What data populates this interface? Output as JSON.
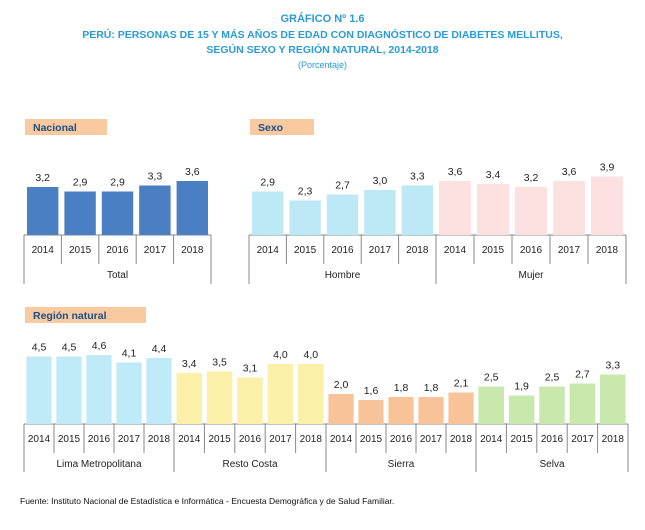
{
  "title": "GRÁFICO Nº 1.6",
  "subtitle1": "PERÚ: PERSONAS DE 15 Y MÁS AÑOS DE EDAD CON DIAGNÓSTICO DE DIABETES MELLITUS,",
  "subtitle2": "SEGÚN SEXO Y REGIÓN NATURAL, 2014-2018",
  "unit": "(Porcentaje)",
  "source": "Fuente: Instituto Nacional de Estadística e Informática - Encuesta Demográfica y de Salud Familiar.",
  "colors": {
    "label_bg": "#f9c9a0",
    "axis": "#888888",
    "total": "#4a7fc4",
    "hombre": "#bde8f5",
    "mujer": "#fde0e0",
    "lima": "#bfeaf8",
    "resto": "#fbf0a8",
    "sierra": "#f9c39a",
    "selva": "#c9e8ac"
  },
  "chart_data": [
    {
      "type": "bar",
      "section": "Nacional",
      "categories": [
        "2014",
        "2015",
        "2016",
        "2017",
        "2018"
      ],
      "ylim": [
        0,
        5
      ],
      "groups": [
        {
          "name": "Total",
          "color": "#4a7fc4",
          "values": [
            3.2,
            2.9,
            2.9,
            3.3,
            3.6
          ],
          "labels": [
            "3,2",
            "2,9",
            "2,9",
            "3,3",
            "3,6"
          ]
        }
      ]
    },
    {
      "type": "bar",
      "section": "Sexo",
      "categories": [
        "2014",
        "2015",
        "2016",
        "2017",
        "2018"
      ],
      "ylim": [
        0,
        5
      ],
      "groups": [
        {
          "name": "Hombre",
          "color": "#bde8f5",
          "values": [
            2.9,
            2.3,
            2.7,
            3.0,
            3.3
          ],
          "labels": [
            "2,9",
            "2,3",
            "2,7",
            "3,0",
            "3,3"
          ]
        },
        {
          "name": "Mujer",
          "color": "#fde0e0",
          "values": [
            3.6,
            3.4,
            3.2,
            3.6,
            3.9
          ],
          "labels": [
            "3,6",
            "3,4",
            "3,2",
            "3,6",
            "3,9"
          ]
        }
      ]
    },
    {
      "type": "bar",
      "section": "Región natural",
      "categories": [
        "2014",
        "2015",
        "2016",
        "2017",
        "2018"
      ],
      "ylim": [
        0,
        5
      ],
      "groups": [
        {
          "name": "Lima Metropolitana",
          "color": "#bfeaf8",
          "values": [
            4.5,
            4.5,
            4.6,
            4.1,
            4.4
          ],
          "labels": [
            "4,5",
            "4,5",
            "4,6",
            "4,1",
            "4,4"
          ]
        },
        {
          "name": "Resto Costa",
          "color": "#fbf0a8",
          "values": [
            3.4,
            3.5,
            3.1,
            4.0,
            4.0
          ],
          "labels": [
            "3,4",
            "3,5",
            "3,1",
            "4,0",
            "4,0"
          ]
        },
        {
          "name": "Sierra",
          "color": "#f9c39a",
          "values": [
            2.0,
            1.6,
            1.8,
            1.8,
            2.1
          ],
          "labels": [
            "2,0",
            "1,6",
            "1,8",
            "1,8",
            "2,1"
          ]
        },
        {
          "name": "Selva",
          "color": "#c9e8ac",
          "values": [
            2.5,
            1.9,
            2.5,
            2.7,
            3.3
          ],
          "labels": [
            "2,5",
            "1,9",
            "2,5",
            "2,7",
            "3,3"
          ]
        }
      ]
    }
  ]
}
